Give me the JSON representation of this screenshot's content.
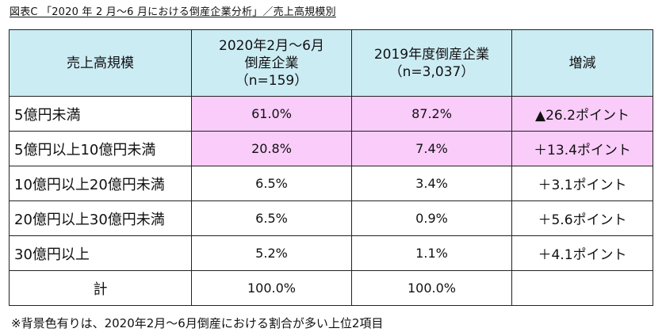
{
  "title": "図表C 「2020 年 2 月〜6 月における倒産企業分析」／売上高規模別",
  "header": {
    "col1": "売上高規模",
    "col2_line1": "2020年2月〜6月",
    "col2_line2": "倒産企業",
    "col2_line3": "（n=159）",
    "col3_line1": "2019年度倒産企業",
    "col3_line2": "（n=3,037）",
    "col4": "増減"
  },
  "rows": [
    {
      "label": "5億円未満",
      "v2020": "61.0%",
      "v2019": "87.2%",
      "diff": "▲26.2ポイント",
      "highlight": true
    },
    {
      "label": "5億円以上10億円未満",
      "v2020": "20.8%",
      "v2019": "7.4%",
      "diff": "＋13.4ポイント",
      "highlight": true
    },
    {
      "label": "10億円以上20億円未満",
      "v2020": "6.5%",
      "v2019": "3.4%",
      "diff": "＋3.1ポイント",
      "highlight": false
    },
    {
      "label": "20億円以上30億円未満",
      "v2020": "6.5%",
      "v2019": "0.9%",
      "diff": "＋5.6ポイント",
      "highlight": false
    },
    {
      "label": "30億円以上",
      "v2020": "5.2%",
      "v2019": "1.1%",
      "diff": "＋4.1ポイント",
      "highlight": false
    }
  ],
  "total": {
    "label": "計",
    "v2020": "100.0%",
    "v2019": "100.0%",
    "diff": ""
  },
  "note": "※背景色有りは、2020年2月〜6月倒産における割合が多い上位2項目",
  "colors": {
    "header_bg": "#ccecf4",
    "highlight_bg": "#f9ccf9",
    "border": "#222222"
  }
}
